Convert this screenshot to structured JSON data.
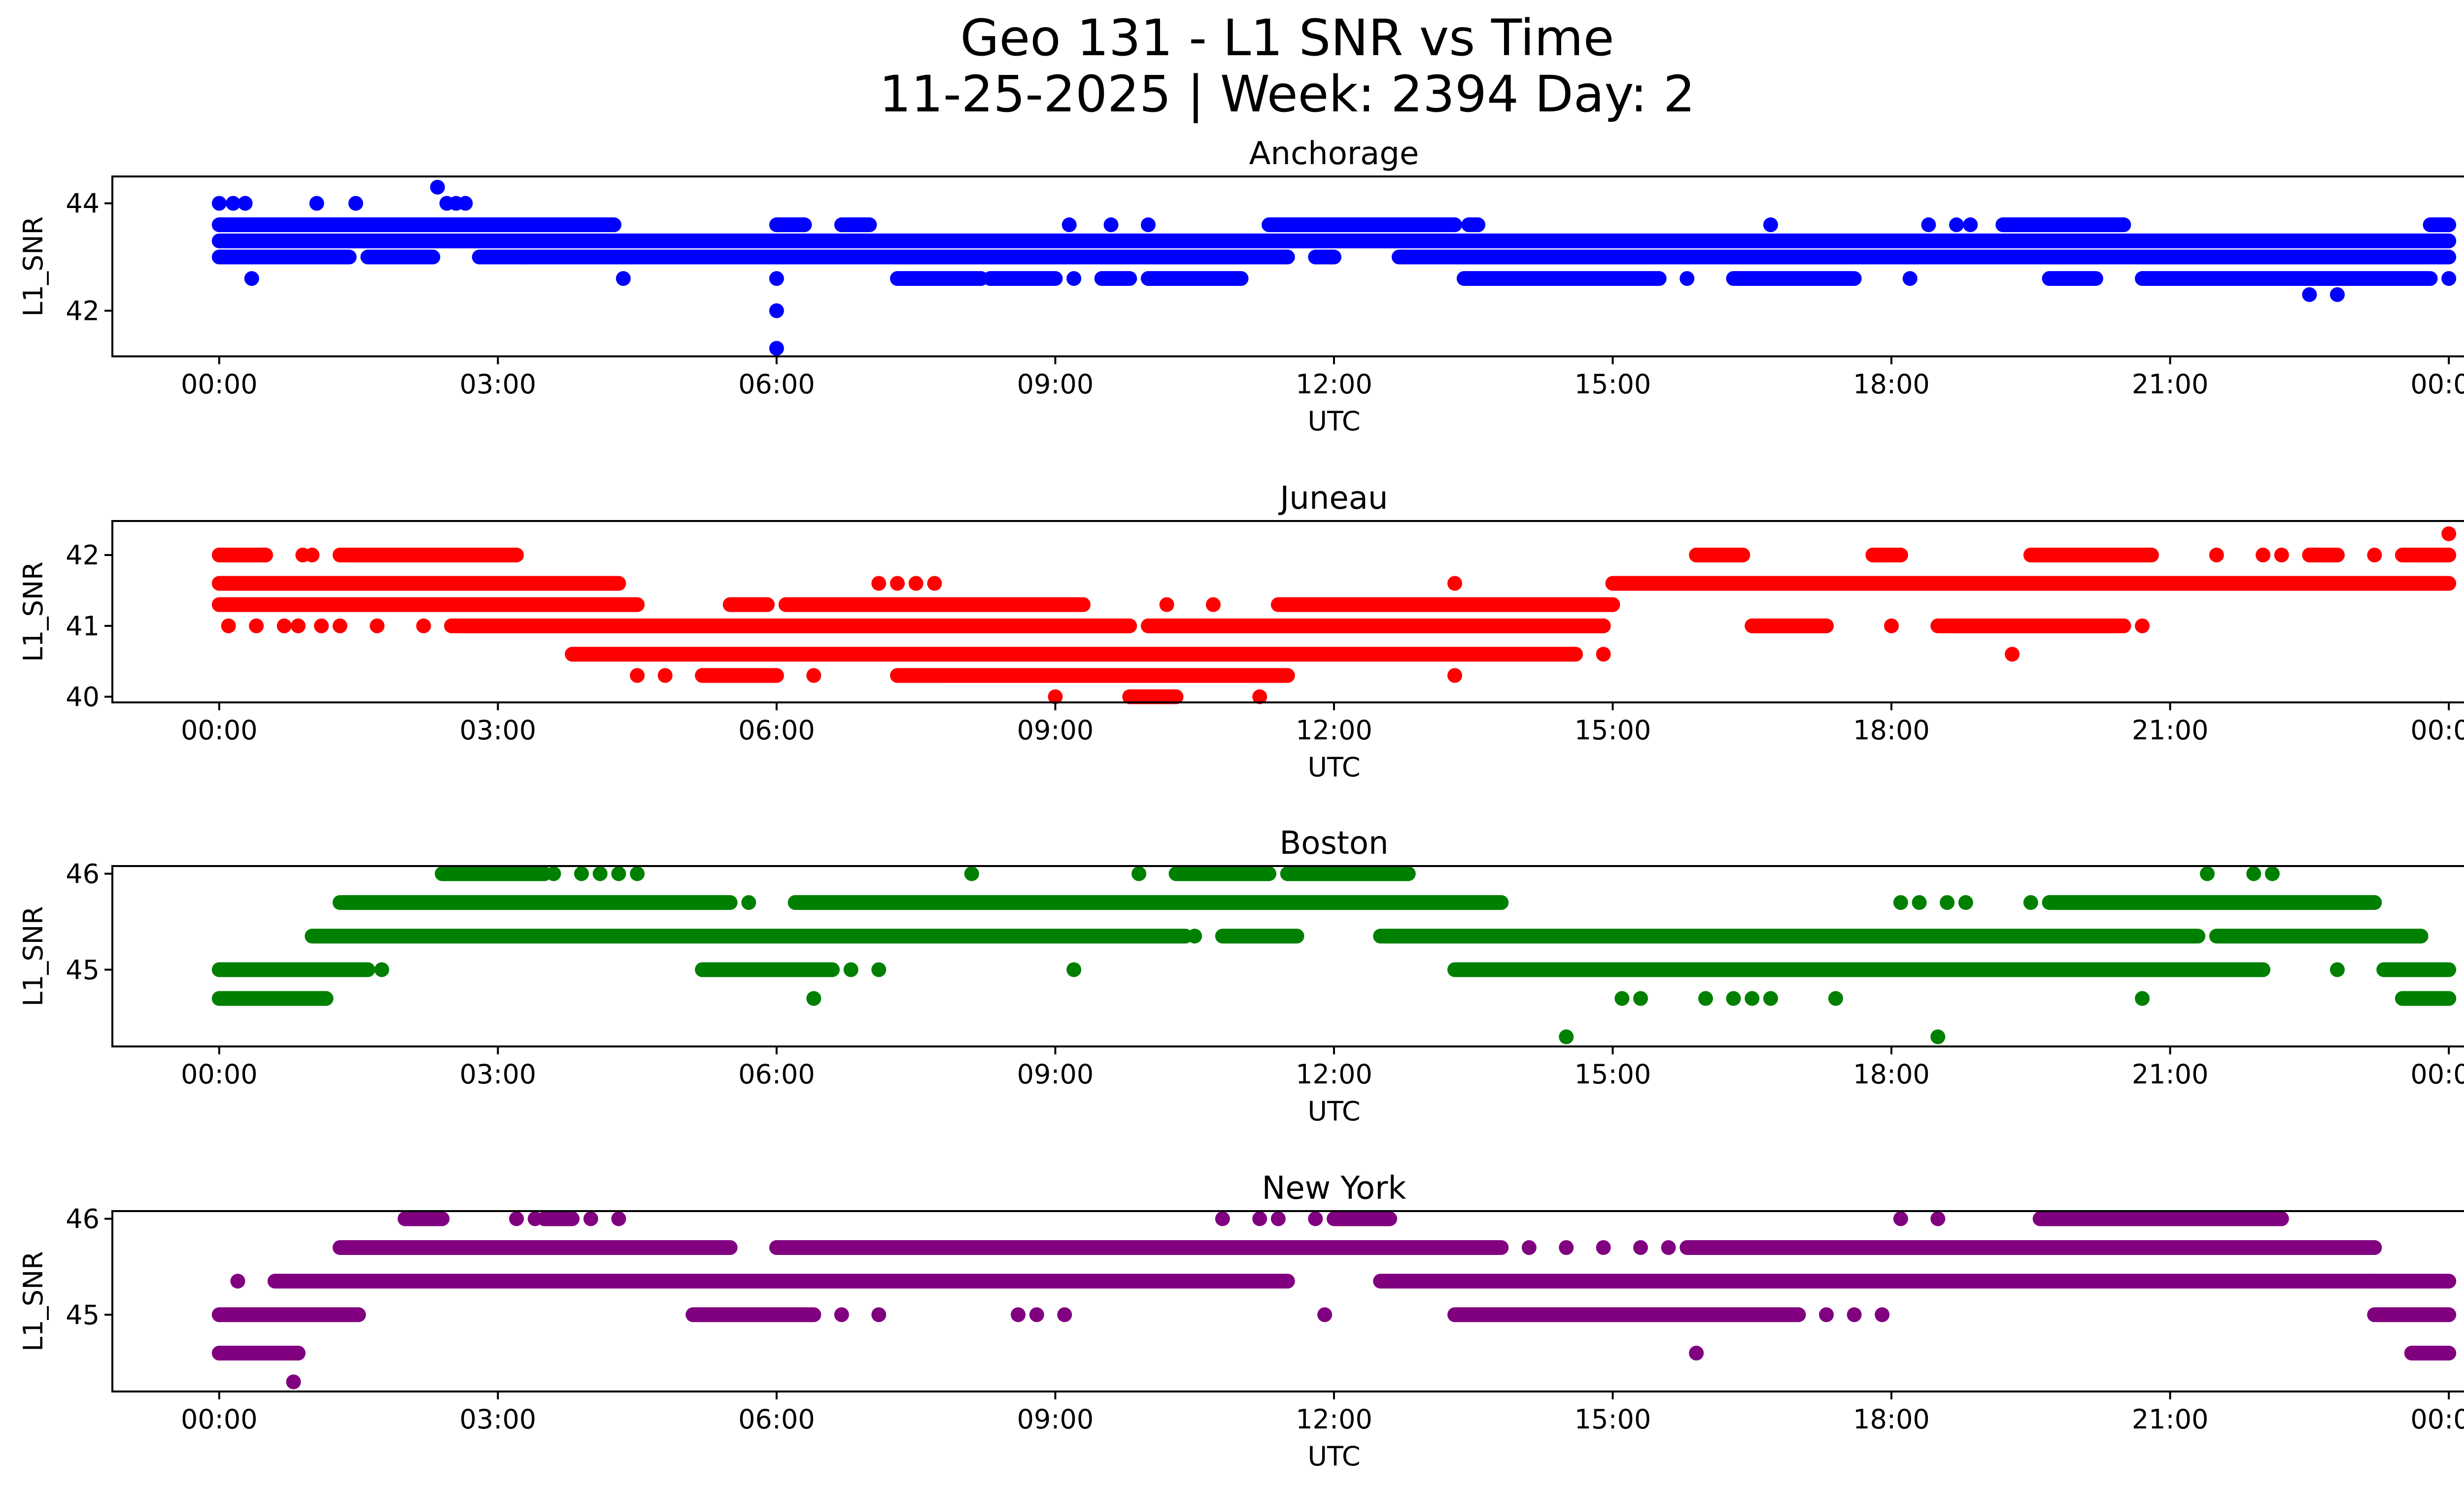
{
  "chart_data": {
    "type": "scatter",
    "title": "Geo 131 - L1 SNR vs Time",
    "subtitle": "11-25-2025 | Week: 2394 Day: 2",
    "xlabel": "UTC",
    "ylabel": "L1_SNR",
    "x_unit": "hours since 11-25-2025 00:00 UTC",
    "xlim": [
      -1.15,
      25.15
    ],
    "xtick_values": [
      0,
      3,
      6,
      9,
      12,
      15,
      18,
      21,
      24
    ],
    "xtick_labels": [
      "00:00",
      "03:00",
      "06:00",
      "09:00",
      "12:00",
      "15:00",
      "18:00",
      "21:00",
      "00:00"
    ],
    "panels": [
      {
        "name": "Anchorage",
        "color": "#0000ff",
        "ylim": [
          41.15,
          44.5
        ],
        "yticks": [
          42,
          44
        ],
        "ytick_labels": [
          "42",
          "44"
        ],
        "segments": [
          {
            "y": 43.6,
            "x": [
              [
                0,
                3.5
              ],
              [
                3.5,
                4.25
              ],
              [
                6,
                6.3
              ],
              [
                6.7,
                7
              ],
              [
                11.3,
                13.3
              ],
              [
                13.45,
                13.55
              ],
              [
                19.2,
                20.5
              ],
              [
                23.8,
                24
              ]
            ]
          },
          {
            "y": 43.3,
            "x": [
              [
                0,
                24
              ]
            ]
          },
          {
            "y": 43.0,
            "x": [
              [
                0,
                1.4
              ],
              [
                1.6,
                2.3
              ],
              [
                2.8,
                3.3
              ],
              [
                3.3,
                11.5
              ],
              [
                11.8,
                12
              ],
              [
                12.7,
                24
              ]
            ]
          },
          {
            "y": 42.6,
            "x": [
              [
                7.3,
                8.2
              ],
              [
                8.3,
                9
              ],
              [
                9.5,
                9.8
              ],
              [
                10,
                11
              ],
              [
                13.4,
                15.5
              ],
              [
                16.3,
                17.6
              ],
              [
                19.7,
                20.2
              ],
              [
                20.7,
                23.8
              ]
            ]
          }
        ],
        "points": [
          {
            "x": 0.0,
            "y": 44.0
          },
          {
            "x": 0.15,
            "y": 44.0
          },
          {
            "x": 0.28,
            "y": 44.0
          },
          {
            "x": 1.05,
            "y": 44.0
          },
          {
            "x": 1.47,
            "y": 44.0
          },
          {
            "x": 2.35,
            "y": 44.3
          },
          {
            "x": 2.45,
            "y": 44.0
          },
          {
            "x": 2.55,
            "y": 44.0
          },
          {
            "x": 2.65,
            "y": 44.0
          },
          {
            "x": 0.35,
            "y": 42.6
          },
          {
            "x": 4.35,
            "y": 42.6
          },
          {
            "x": 6.0,
            "y": 42.6
          },
          {
            "x": 6.0,
            "y": 42.0
          },
          {
            "x": 6.0,
            "y": 41.3
          },
          {
            "x": 9.15,
            "y": 43.6
          },
          {
            "x": 9.6,
            "y": 43.6
          },
          {
            "x": 10.0,
            "y": 43.6
          },
          {
            "x": 16.7,
            "y": 43.6
          },
          {
            "x": 18.4,
            "y": 43.6
          },
          {
            "x": 18.7,
            "y": 43.6
          },
          {
            "x": 18.85,
            "y": 43.6
          },
          {
            "x": 9.2,
            "y": 42.6
          },
          {
            "x": 15.8,
            "y": 42.6
          },
          {
            "x": 18.2,
            "y": 42.6
          },
          {
            "x": 22.5,
            "y": 42.3
          },
          {
            "x": 22.8,
            "y": 42.3
          },
          {
            "x": 24.0,
            "y": 42.6
          }
        ]
      },
      {
        "name": "Juneau",
        "color": "#ff0000",
        "ylim": [
          39.92,
          42.48
        ],
        "yticks": [
          40,
          41,
          42
        ],
        "ytick_labels": [
          "40",
          "41",
          "42"
        ],
        "segments": [
          {
            "y": 42.0,
            "x": [
              [
                0,
                0.5
              ],
              [
                1.3,
                2.8
              ],
              [
                2.8,
                3.2
              ],
              [
                15.9,
                16.4
              ],
              [
                17.8,
                18.1
              ],
              [
                19.5,
                20.8
              ],
              [
                22.5,
                22.8
              ],
              [
                23.5,
                24
              ]
            ]
          },
          {
            "y": 41.6,
            "x": [
              [
                0,
                4.3
              ],
              [
                15,
                24
              ]
            ]
          },
          {
            "y": 41.3,
            "x": [
              [
                0,
                4.5
              ],
              [
                5.5,
                5.9
              ],
              [
                6.1,
                9.3
              ],
              [
                11.4,
                15
              ]
            ]
          },
          {
            "y": 41.0,
            "x": [
              [
                2.5,
                9.8
              ],
              [
                10,
                14.9
              ],
              [
                16.5,
                17.3
              ],
              [
                18.5,
                20.5
              ]
            ]
          },
          {
            "y": 40.6,
            "x": [
              [
                3.8,
                14.6
              ]
            ]
          },
          {
            "y": 40.3,
            "x": [
              [
                5.2,
                6
              ],
              [
                7.3,
                11.5
              ]
            ]
          },
          {
            "y": 40.0,
            "x": [
              [
                9.8,
                10.3
              ]
            ]
          }
        ],
        "points": [
          {
            "x": 0.9,
            "y": 42.0
          },
          {
            "x": 1.0,
            "y": 42.0
          },
          {
            "x": 13.3,
            "y": 41.6
          },
          {
            "x": 21.5,
            "y": 42.0
          },
          {
            "x": 22.0,
            "y": 42.0
          },
          {
            "x": 22.2,
            "y": 42.0
          },
          {
            "x": 23.2,
            "y": 42.0
          },
          {
            "x": 24.0,
            "y": 42.3
          },
          {
            "x": 0.1,
            "y": 41.0
          },
          {
            "x": 0.4,
            "y": 41.0
          },
          {
            "x": 0.7,
            "y": 41.0
          },
          {
            "x": 0.85,
            "y": 41.0
          },
          {
            "x": 1.1,
            "y": 41.0
          },
          {
            "x": 1.3,
            "y": 41.0
          },
          {
            "x": 1.7,
            "y": 41.0
          },
          {
            "x": 2.2,
            "y": 41.0
          },
          {
            "x": 18.0,
            "y": 41.0
          },
          {
            "x": 20.7,
            "y": 41.0
          },
          {
            "x": 4.5,
            "y": 40.3
          },
          {
            "x": 4.8,
            "y": 40.3
          },
          {
            "x": 6.4,
            "y": 40.3
          },
          {
            "x": 13.3,
            "y": 40.3
          },
          {
            "x": 14.9,
            "y": 40.6
          },
          {
            "x": 19.3,
            "y": 40.6
          },
          {
            "x": 9.0,
            "y": 40.0
          },
          {
            "x": 11.2,
            "y": 40.0
          },
          {
            "x": 7.1,
            "y": 41.6
          },
          {
            "x": 7.3,
            "y": 41.6
          },
          {
            "x": 7.5,
            "y": 41.6
          },
          {
            "x": 7.7,
            "y": 41.6
          },
          {
            "x": 10.2,
            "y": 41.3
          },
          {
            "x": 10.7,
            "y": 41.3
          }
        ]
      },
      {
        "name": "Boston",
        "color": "#008000",
        "ylim": [
          44.2,
          46.08
        ],
        "yticks": [
          45,
          46
        ],
        "ytick_labels": [
          "45",
          "46"
        ],
        "segments": [
          {
            "y": 46.0,
            "x": [
              [
                2.4,
                3.5
              ],
              [
                10.3,
                11.3
              ],
              [
                11.5,
                12.8
              ]
            ]
          },
          {
            "y": 45.7,
            "x": [
              [
                1.3,
                5.5
              ],
              [
                6.2,
                13.8
              ],
              [
                19.7,
                23.2
              ]
            ]
          },
          {
            "y": 45.35,
            "x": [
              [
                1,
                10.4
              ],
              [
                10.8,
                11.6
              ],
              [
                12.5,
                21.3
              ],
              [
                21.5,
                23.7
              ]
            ]
          },
          {
            "y": 45.0,
            "x": [
              [
                0,
                1.6
              ],
              [
                5.2,
                6.6
              ],
              [
                13.3,
                22
              ],
              [
                23.3,
                24
              ]
            ]
          },
          {
            "y": 44.7,
            "x": [
              [
                0,
                1.15
              ],
              [
                23.5,
                24
              ]
            ]
          }
        ],
        "points": [
          {
            "x": 3.6,
            "y": 46.0
          },
          {
            "x": 3.9,
            "y": 46.0
          },
          {
            "x": 4.1,
            "y": 46.0
          },
          {
            "x": 4.3,
            "y": 46.0
          },
          {
            "x": 4.5,
            "y": 46.0
          },
          {
            "x": 8.1,
            "y": 46.0
          },
          {
            "x": 9.9,
            "y": 46.0
          },
          {
            "x": 21.4,
            "y": 46.0
          },
          {
            "x": 21.9,
            "y": 46.0
          },
          {
            "x": 22.1,
            "y": 46.0
          },
          {
            "x": 5.7,
            "y": 45.7
          },
          {
            "x": 18.1,
            "y": 45.7
          },
          {
            "x": 18.3,
            "y": 45.7
          },
          {
            "x": 18.6,
            "y": 45.7
          },
          {
            "x": 18.8,
            "y": 45.7
          },
          {
            "x": 19.5,
            "y": 45.7
          },
          {
            "x": 10.5,
            "y": 45.35
          },
          {
            "x": 1.75,
            "y": 45.0
          },
          {
            "x": 6.8,
            "y": 45.0
          },
          {
            "x": 7.1,
            "y": 45.0
          },
          {
            "x": 9.2,
            "y": 45.0
          },
          {
            "x": 20.8,
            "y": 45.0
          },
          {
            "x": 22.8,
            "y": 45.0
          },
          {
            "x": 6.4,
            "y": 44.7
          },
          {
            "x": 15.1,
            "y": 44.7
          },
          {
            "x": 15.3,
            "y": 44.7
          },
          {
            "x": 16.0,
            "y": 44.7
          },
          {
            "x": 16.3,
            "y": 44.7
          },
          {
            "x": 16.5,
            "y": 44.7
          },
          {
            "x": 16.7,
            "y": 44.7
          },
          {
            "x": 17.4,
            "y": 44.7
          },
          {
            "x": 20.7,
            "y": 44.7
          },
          {
            "x": 14.5,
            "y": 44.3
          },
          {
            "x": 18.5,
            "y": 44.3
          }
        ]
      },
      {
        "name": "New York",
        "color": "#800080",
        "ylim": [
          44.2,
          46.08
        ],
        "yticks": [
          45,
          46
        ],
        "ytick_labels": [
          "45",
          "46"
        ],
        "segments": [
          {
            "y": 46.0,
            "x": [
              [
                2,
                2.4
              ],
              [
                3.5,
                3.8
              ],
              [
                12,
                12.6
              ],
              [
                19.6,
                22.2
              ]
            ]
          },
          {
            "y": 45.7,
            "x": [
              [
                1.3,
                5.5
              ],
              [
                6,
                13.8
              ],
              [
                15.8,
                23.2
              ]
            ]
          },
          {
            "y": 45.35,
            "x": [
              [
                0.6,
                11.5
              ],
              [
                12.5,
                23.2
              ],
              [
                23.2,
                24
              ]
            ]
          },
          {
            "y": 45.0,
            "x": [
              [
                0,
                1.5
              ],
              [
                5.1,
                6.4
              ],
              [
                13.3,
                17
              ],
              [
                23.2,
                24
              ]
            ]
          },
          {
            "y": 44.6,
            "x": [
              [
                0,
                0.85
              ],
              [
                23.6,
                24
              ]
            ]
          }
        ],
        "points": [
          {
            "x": 0.2,
            "y": 45.35
          },
          {
            "x": 0.8,
            "y": 44.3
          },
          {
            "x": 3.2,
            "y": 46.0
          },
          {
            "x": 3.4,
            "y": 46.0
          },
          {
            "x": 4.0,
            "y": 46.0
          },
          {
            "x": 4.3,
            "y": 46.0
          },
          {
            "x": 10.8,
            "y": 46.0
          },
          {
            "x": 11.2,
            "y": 46.0
          },
          {
            "x": 11.4,
            "y": 46.0
          },
          {
            "x": 11.8,
            "y": 46.0
          },
          {
            "x": 18.1,
            "y": 46.0
          },
          {
            "x": 18.5,
            "y": 46.0
          },
          {
            "x": 6.5,
            "y": 45.7
          },
          {
            "x": 14.1,
            "y": 45.7
          },
          {
            "x": 14.5,
            "y": 45.7
          },
          {
            "x": 14.9,
            "y": 45.7
          },
          {
            "x": 15.3,
            "y": 45.7
          },
          {
            "x": 15.6,
            "y": 45.7
          },
          {
            "x": 6.7,
            "y": 45.0
          },
          {
            "x": 7.1,
            "y": 45.0
          },
          {
            "x": 8.6,
            "y": 45.0
          },
          {
            "x": 8.8,
            "y": 45.0
          },
          {
            "x": 9.1,
            "y": 45.0
          },
          {
            "x": 11.9,
            "y": 45.0
          },
          {
            "x": 17.3,
            "y": 45.0
          },
          {
            "x": 17.6,
            "y": 45.0
          },
          {
            "x": 17.9,
            "y": 45.0
          },
          {
            "x": 15.9,
            "y": 44.6
          }
        ]
      }
    ]
  }
}
